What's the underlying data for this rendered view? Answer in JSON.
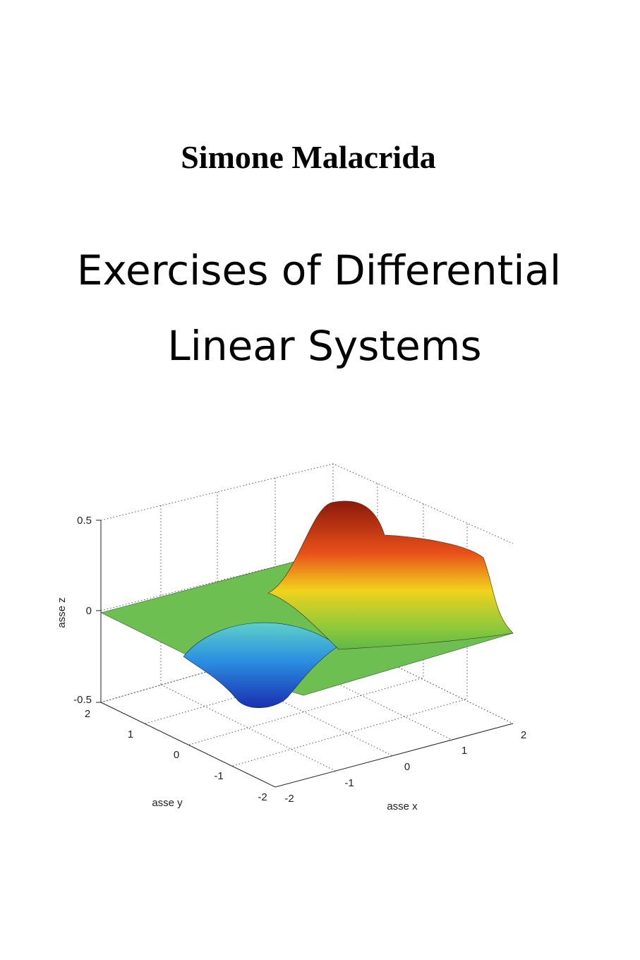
{
  "author": "Simone Malacrida",
  "title_lines": [
    "Exercises of Differential",
    "Linear Systems"
  ],
  "figure": {
    "z_label": "asse z",
    "y_label": "asse y",
    "x_label": "asse x",
    "z_ticks": [
      "0.5",
      "0",
      "-0.5"
    ],
    "y_ticks": [
      "2",
      "1",
      "0",
      "-1",
      "-2"
    ],
    "x_ticks": [
      "-2",
      "-1",
      "0",
      "1",
      "2"
    ]
  }
}
